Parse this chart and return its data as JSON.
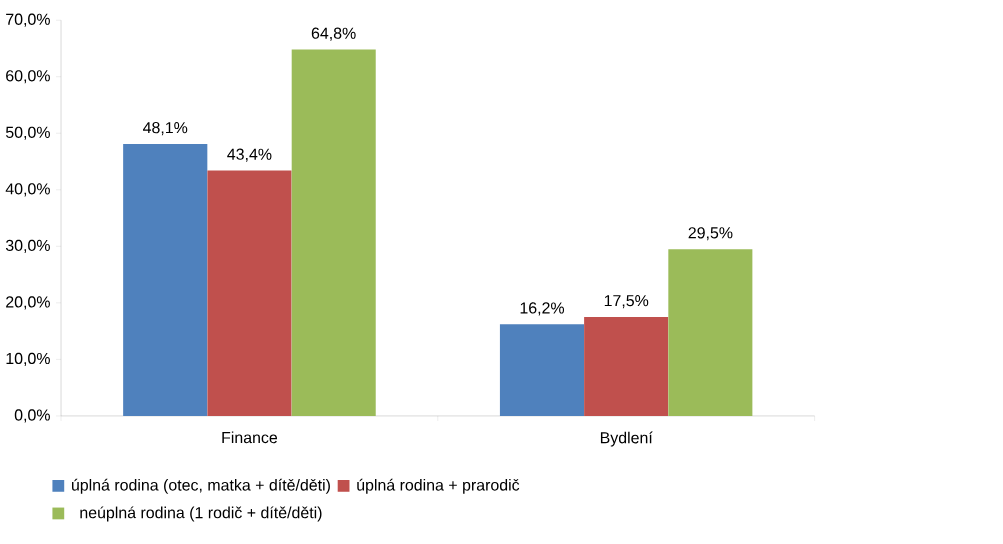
{
  "chart_data": {
    "type": "bar",
    "categories": [
      "Finance",
      "Bydlení"
    ],
    "series": [
      {
        "name": "úplná rodina (otec, matka + dítě/děti)",
        "color": "#4f81bd",
        "values": [
          48.1,
          16.2
        ],
        "value_labels": [
          "48,1%",
          "16,2%"
        ]
      },
      {
        "name": "úplná rodina + prarodič",
        "color": "#c0504d",
        "values": [
          43.4,
          17.5
        ],
        "value_labels": [
          "43,4%",
          "17,5%"
        ]
      },
      {
        "name": "neúplná rodina (1 rodič + dítě/děti)",
        "color": "#9bbb59",
        "values": [
          64.8,
          29.5
        ],
        "value_labels": [
          "64,8%",
          "29,5%"
        ]
      }
    ],
    "ylim": [
      0,
      70
    ],
    "yticks": [
      {
        "value": 0,
        "label": "0,0%"
      },
      {
        "value": 10,
        "label": "10,0%"
      },
      {
        "value": 20,
        "label": "20,0%"
      },
      {
        "value": 30,
        "label": "30,0%"
      },
      {
        "value": 40,
        "label": "40,0%"
      },
      {
        "value": 50,
        "label": "50,0%"
      },
      {
        "value": 60,
        "label": "60,0%"
      },
      {
        "value": 70,
        "label": "70,0%"
      }
    ],
    "legend": "bottom"
  }
}
